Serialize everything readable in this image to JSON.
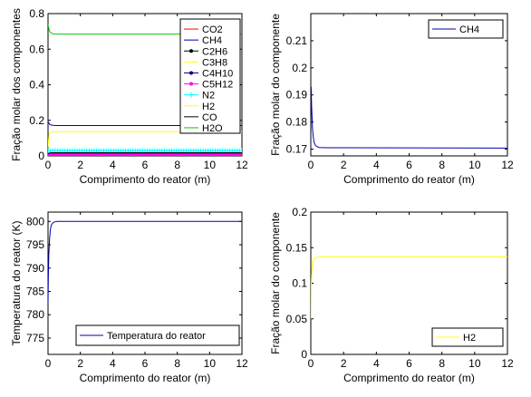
{
  "chart_data": [
    {
      "type": "line",
      "xlabel": "Comprimento do reator (m)",
      "ylabel": "Fração molar dos componentes",
      "xlim": [
        0,
        12
      ],
      "ylim": [
        0,
        0.8
      ],
      "xticks": [
        "0",
        "2",
        "4",
        "6",
        "8",
        "10",
        "12"
      ],
      "yticks": [
        "0",
        "0.2",
        "0.4",
        "0.6",
        "0.8"
      ],
      "legend_position": "top-right",
      "series": [
        {
          "name": "CO2",
          "color": "#ff0000",
          "marker": "none",
          "x": [
            0,
            0.05,
            0.15,
            0.3,
            12
          ],
          "y": [
            0.005,
            0.01,
            0.012,
            0.013,
            0.013
          ]
        },
        {
          "name": "CH4",
          "color": "#0000aa",
          "marker": "none",
          "x": [
            0,
            0.05,
            0.1,
            0.2,
            0.5,
            1,
            12
          ],
          "y": [
            0.193,
            0.185,
            0.178,
            0.173,
            0.171,
            0.1705,
            0.1705
          ]
        },
        {
          "name": "C2H6",
          "color": "#000000",
          "marker": "dot",
          "x": [
            0,
            12
          ],
          "y": [
            0.003,
            0.003
          ]
        },
        {
          "name": "C3H8",
          "color": "#ffff00",
          "marker": "none",
          "x": [
            0,
            12
          ],
          "y": [
            0.002,
            0.002
          ]
        },
        {
          "name": "C4H10",
          "color": "#000080",
          "marker": "dot",
          "x": [
            0,
            12
          ],
          "y": [
            0.001,
            0.001
          ]
        },
        {
          "name": "C5H12",
          "color": "#ff00ff",
          "marker": "dot",
          "x": [
            0,
            12
          ],
          "y": [
            0.004,
            0.004
          ]
        },
        {
          "name": "N2",
          "color": "#00ffff",
          "marker": "cross",
          "x": [
            0,
            12
          ],
          "y": [
            0.03,
            0.03
          ]
        },
        {
          "name": "H2",
          "color": "#ffff00",
          "marker": "none",
          "x": [
            0,
            0.05,
            0.1,
            0.2,
            0.4,
            12
          ],
          "y": [
            0.05,
            0.11,
            0.128,
            0.134,
            0.136,
            0.136
          ]
        },
        {
          "name": "CO",
          "color": "#000000",
          "marker": "none",
          "x": [
            0,
            0.1,
            0.3,
            12
          ],
          "y": [
            0.012,
            0.017,
            0.018,
            0.018
          ]
        },
        {
          "name": "H2O",
          "color": "#00cc00",
          "marker": "none",
          "x": [
            0,
            0.05,
            0.1,
            0.2,
            0.4,
            12
          ],
          "y": [
            0.74,
            0.715,
            0.7,
            0.69,
            0.685,
            0.685
          ]
        }
      ]
    },
    {
      "type": "line",
      "xlabel": "Comprimento do reator (m)",
      "ylabel": "Fração molar do componente",
      "xlim": [
        0,
        12
      ],
      "ylim": [
        0.1675,
        0.22
      ],
      "xticks": [
        "0",
        "2",
        "4",
        "6",
        "8",
        "10",
        "12"
      ],
      "yticks": [
        "0.17",
        "0.18",
        "0.19",
        "0.2",
        "0.21"
      ],
      "legend_position": "top-right",
      "series": [
        {
          "name": "CH4",
          "color": "#0000aa",
          "marker": "none",
          "x": [
            0,
            0.02,
            0.05,
            0.1,
            0.15,
            0.2,
            0.3,
            0.5,
            1,
            2,
            12
          ],
          "y": [
            0.171,
            0.193,
            0.186,
            0.178,
            0.1745,
            0.1725,
            0.1712,
            0.1706,
            0.1705,
            0.1705,
            0.1704
          ]
        }
      ]
    },
    {
      "type": "line",
      "xlabel": "Comprimento do reator (m)",
      "ylabel": "Temperatura do reator (K)",
      "xlim": [
        0,
        12
      ],
      "ylim": [
        771.5,
        802
      ],
      "xticks": [
        "0",
        "2",
        "4",
        "6",
        "8",
        "10",
        "12"
      ],
      "yticks": [
        "775",
        "780",
        "785",
        "790",
        "795",
        "800"
      ],
      "legend_position": "bottom-right",
      "series": [
        {
          "name": "Temperatura do reator",
          "color": "#0000aa",
          "marker": "none",
          "x": [
            0,
            0.02,
            0.05,
            0.1,
            0.15,
            0.2,
            0.3,
            0.4,
            0.6,
            1,
            12
          ],
          "y": [
            782.5,
            788,
            793,
            796.5,
            798.3,
            799.2,
            799.7,
            799.9,
            800,
            800,
            800
          ]
        }
      ]
    },
    {
      "type": "line",
      "xlabel": "Comprimento do reator (m)",
      "ylabel": "Fração molar do componente",
      "xlim": [
        0,
        12
      ],
      "ylim": [
        0,
        0.2
      ],
      "xticks": [
        "0",
        "2",
        "4",
        "6",
        "8",
        "10",
        "12"
      ],
      "yticks": [
        "0",
        "0.05",
        "0.1",
        "0.15",
        "0.2"
      ],
      "legend_position": "bottom-right",
      "series": [
        {
          "name": "H2",
          "color": "#ffff00",
          "marker": "none",
          "x": [
            0,
            0.03,
            0.06,
            0.1,
            0.15,
            0.2,
            0.3,
            0.5,
            12
          ],
          "y": [
            0.05,
            0.1,
            0.118,
            0.127,
            0.132,
            0.134,
            0.136,
            0.137,
            0.137
          ]
        }
      ]
    }
  ]
}
